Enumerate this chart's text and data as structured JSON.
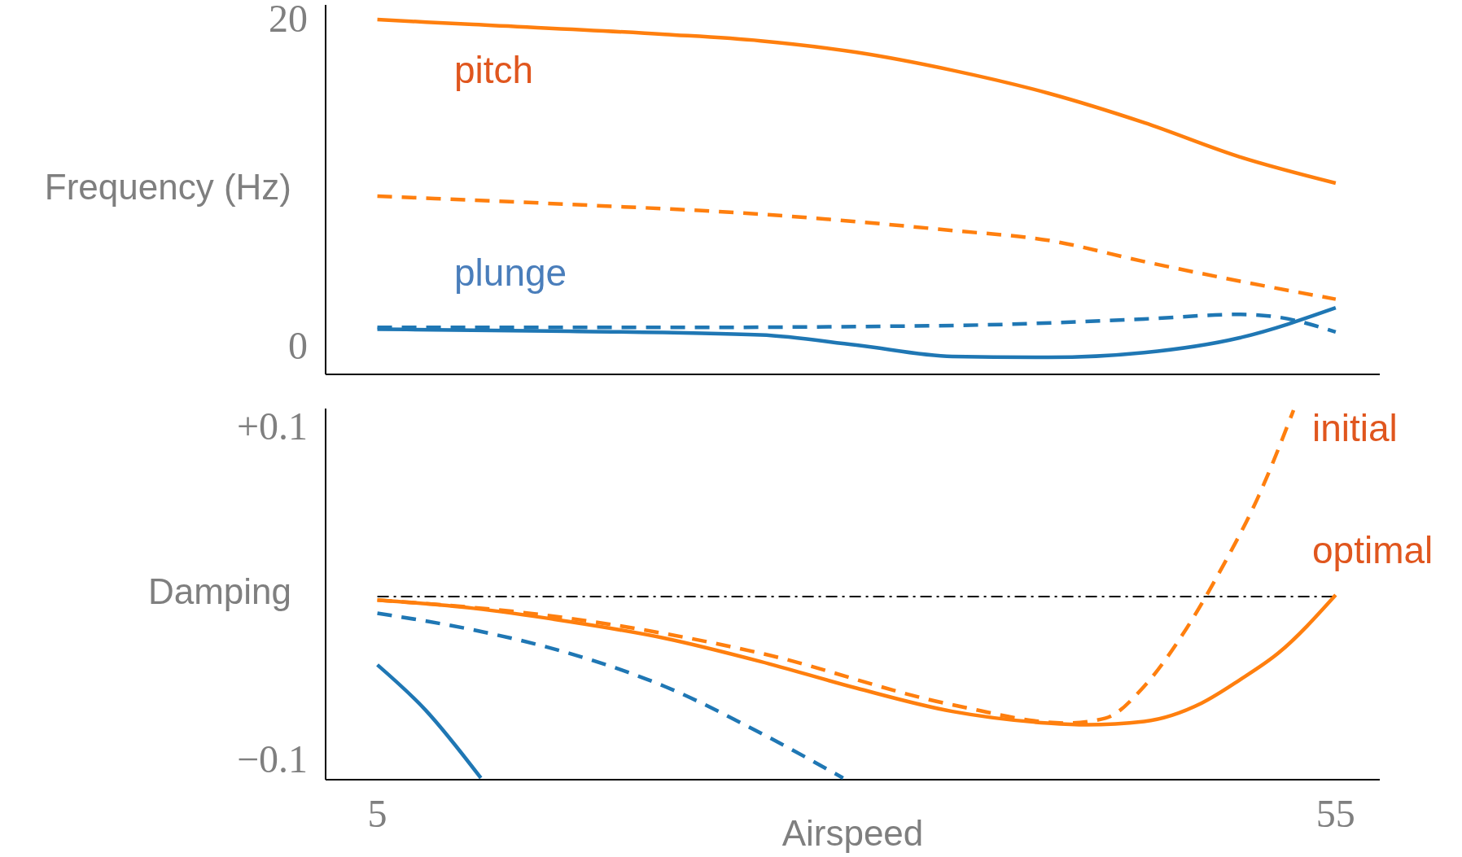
{
  "chart_data": [
    {
      "type": "line",
      "ylabel": "Frequency (Hz)",
      "xlim": [
        2.3,
        57.3
      ],
      "ylim": [
        -1.5,
        21.1
      ],
      "yticks": [
        0,
        20
      ],
      "tick_labels": "y",
      "annotations": [
        "pitch",
        "plunge"
      ],
      "series": [
        {
          "color": "#ff7f0e",
          "line_style": "solid",
          "x": [
            5,
            10,
            20,
            25,
            30,
            35,
            40,
            45,
            50,
            55
          ],
          "values": [
            20.2,
            19.9,
            19.3,
            18.9,
            18.2,
            17.1,
            15.7,
            13.9,
            11.8,
            10.2
          ]
        },
        {
          "color": "#ff7f0e",
          "line_style": "dashed",
          "x": [
            5,
            15,
            25,
            35,
            40,
            45,
            50,
            55
          ],
          "values": [
            9.4,
            8.9,
            8.3,
            7.3,
            6.7,
            5.4,
            4.2,
            3.1
          ]
        },
        {
          "color": "#1f77b4",
          "line_style": "solid",
          "x": [
            5,
            15,
            25,
            30,
            35,
            40,
            45,
            50,
            55
          ],
          "values": [
            1.26,
            1.14,
            0.91,
            0.29,
            -0.4,
            -0.46,
            -0.17,
            0.74,
            2.57
          ]
        },
        {
          "color": "#1f77b4",
          "line_style": "dashed",
          "x": [
            5,
            20,
            35,
            45,
            50,
            52,
            55
          ],
          "values": [
            1.37,
            1.37,
            1.49,
            1.89,
            2.17,
            2.0,
            1.09
          ]
        }
      ]
    },
    {
      "type": "line",
      "ylabel": "Damping",
      "xlabel": "Airspeed",
      "xlim": [
        2.3,
        57.3
      ],
      "ylim": [
        -0.11,
        0.113
      ],
      "yticks": [
        {
          "value": 0.1,
          "label": "+0.1"
        },
        {
          "value": -0.1,
          "label": "−0.1"
        }
      ],
      "xticks": [
        5,
        55
      ],
      "annotations": [
        "initial",
        "optimal"
      ],
      "ref_lines": [
        {
          "axis": "y",
          "value": 0,
          "color": "#000000",
          "line_style": "dashdot"
        }
      ],
      "series": [
        {
          "color": "#ff7f0e",
          "line_style": "solid",
          "x": [
            5,
            10,
            15,
            20,
            25,
            30,
            35,
            40,
            42,
            45,
            48,
            50,
            52,
            55
          ],
          "values": [
            -0.002,
            -0.007,
            -0.015,
            -0.025,
            -0.039,
            -0.055,
            -0.069,
            -0.076,
            -0.077,
            -0.075,
            -0.064,
            -0.05,
            -0.034,
            0.001
          ]
        },
        {
          "color": "#ff7f0e",
          "line_style": "dashed",
          "x": [
            5,
            15,
            25,
            35,
            41,
            43,
            45,
            47,
            49,
            51,
            52.8
          ],
          "values": [
            -0.002,
            -0.013,
            -0.034,
            -0.065,
            -0.076,
            -0.073,
            -0.054,
            -0.023,
            0.016,
            0.061,
            0.112
          ]
        },
        {
          "color": "#1f77b4",
          "line_style": "dashed",
          "x": [
            5,
            10,
            15,
            20,
            25,
            29.3
          ],
          "values": [
            -0.01,
            -0.02,
            -0.034,
            -0.054,
            -0.082,
            -0.109
          ]
        },
        {
          "color": "#1f77b4",
          "line_style": "solid",
          "x": [
            5,
            7.5,
            10.4
          ],
          "values": [
            -0.041,
            -0.068,
            -0.109
          ]
        }
      ]
    }
  ]
}
